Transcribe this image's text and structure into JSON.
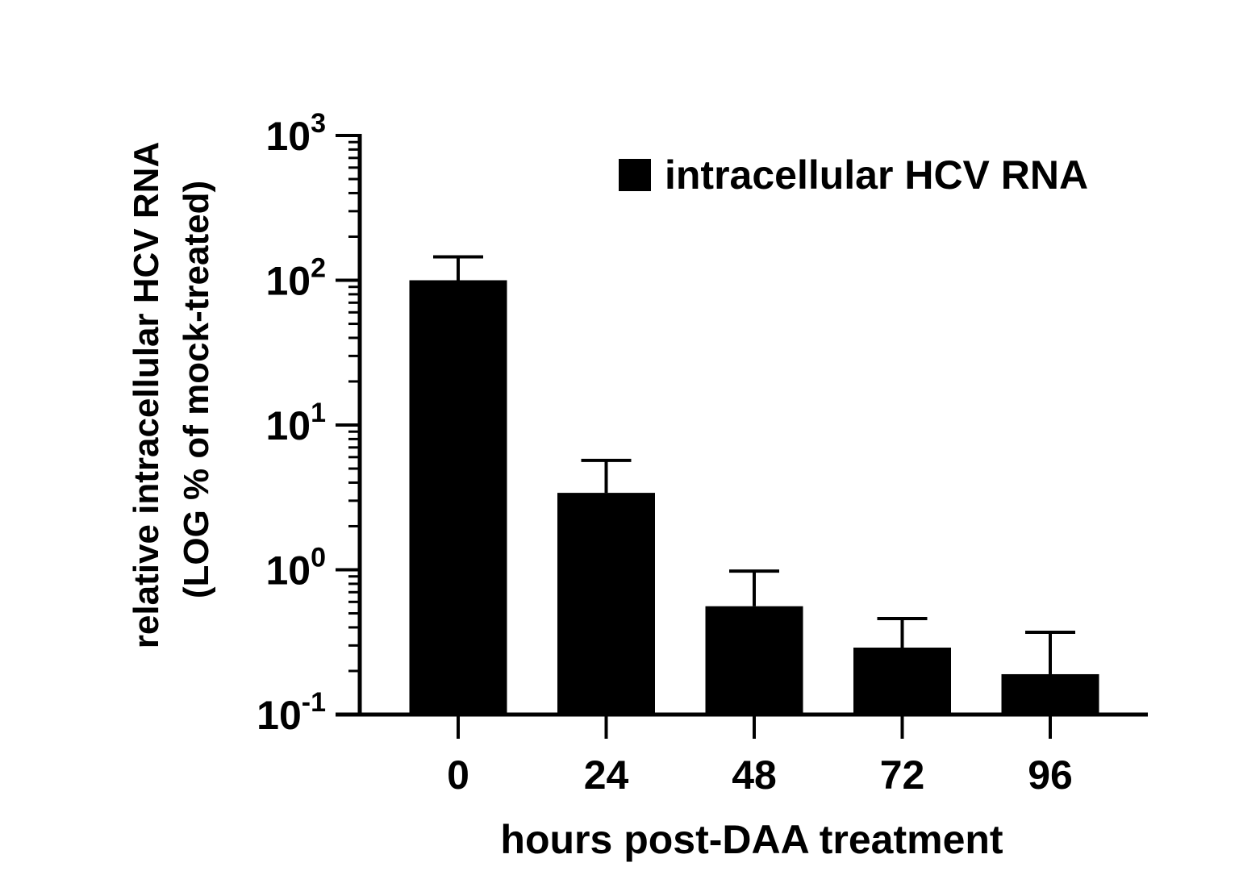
{
  "chart_data": {
    "type": "bar",
    "x_label": "hours post-DAA treatment",
    "y_label_line1": "relative intracellular HCV RNA",
    "y_label_line2": "(LOG % of mock-treated)",
    "y_scale": "log",
    "y_range": [
      0.1,
      1000
    ],
    "y_ticks": [
      {
        "value": 1000,
        "base": "10",
        "exp": "3"
      },
      {
        "value": 100,
        "base": "10",
        "exp": "2"
      },
      {
        "value": 10,
        "base": "10",
        "exp": "1"
      },
      {
        "value": 1,
        "base": "10",
        "exp": "0"
      },
      {
        "value": 0.1,
        "base": "10",
        "exp": "-1"
      }
    ],
    "categories": [
      "0",
      "24",
      "48",
      "72",
      "96"
    ],
    "series": [
      {
        "name": "intracellular HCV RNA",
        "color": "#000000",
        "values": [
          100,
          3.4,
          0.56,
          0.29,
          0.19
        ],
        "error_upper": [
          145,
          5.7,
          0.98,
          0.46,
          0.37
        ]
      }
    ],
    "legend_position": "top-right",
    "grid": false
  }
}
